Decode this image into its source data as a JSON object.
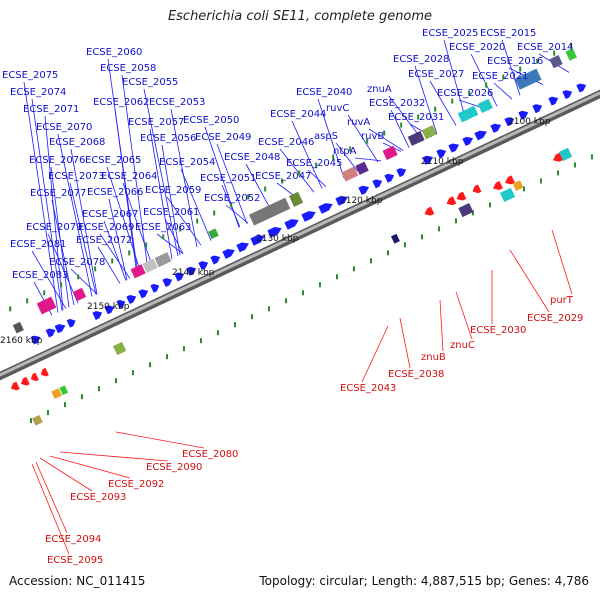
{
  "title": "Escherichia coli SE11, complete genome",
  "footer": {
    "accession": "Accession: NC_011415",
    "summary": "Topology: circular; Length: 4,887,515 bp; Genes: 4,786"
  },
  "colors": {
    "forward_gene": "#1a1aff",
    "reverse_gene": "#ff1a1a",
    "backbone": "#8c8c8c",
    "marker": "#2a8a2a",
    "label_forward": "#1010c8",
    "label_reverse": "#d01010"
  },
  "ticks": [
    {
      "label": "2100 kbp"
    },
    {
      "label": "2110 kbp"
    },
    {
      "label": "2120 kbp"
    },
    {
      "label": "2130 kbp"
    },
    {
      "label": "2140 kbp"
    },
    {
      "label": "2150 kbp"
    },
    {
      "label": "2160 kbp"
    }
  ],
  "forward_labels": [
    "ECSE_2015",
    "ECSE_2025",
    "ECSE_2020",
    "ECSE_2014",
    "ECSE_2016",
    "ECSE_2021",
    "ECSE_2028",
    "ECSE_2027",
    "ECSE_2026",
    "znuA",
    "ECSE_2032",
    "ECSE_2031",
    "ECSE_2040",
    "ruvC",
    "ruvA",
    "ruvB",
    "aspS",
    "ntpA",
    "ECSE_2044",
    "ECSE_2046",
    "ECSE_2045",
    "ECSE_2047",
    "ECSE_2048",
    "ECSE_2049",
    "ECSE_2050",
    "ECSE_2051",
    "ECSE_2052",
    "ECSE_2053",
    "ECSE_2054",
    "ECSE_2055",
    "ECSE_2056",
    "ECSE_2057",
    "ECSE_2058",
    "ECSE_2060",
    "ECSE_2059",
    "ECSE_2061",
    "ECSE_2062",
    "ECSE_2063",
    "ECSE_2064",
    "ECSE_2065",
    "ECSE_2066",
    "ECSE_2067",
    "ECSE_2068",
    "ECSE_2069",
    "ECSE_2070",
    "ECSE_2071",
    "ECSE_2072",
    "ECSE_2073",
    "ECSE_2074",
    "ECSE_2075",
    "ECSE_2076",
    "ECSE_2077",
    "ECSE_2078",
    "ECSE_2079",
    "ECSE_2081",
    "ECSE_2083"
  ],
  "reverse_labels": [
    "purT",
    "ECSE_2029",
    "ECSE_2030",
    "znuC",
    "znuB",
    "ECSE_2038",
    "ECSE_2043",
    "ECSE_2080",
    "ECSE_2090",
    "ECSE_2092",
    "ECSE_2093",
    "ECSE_2094",
    "ECSE_2095"
  ]
}
